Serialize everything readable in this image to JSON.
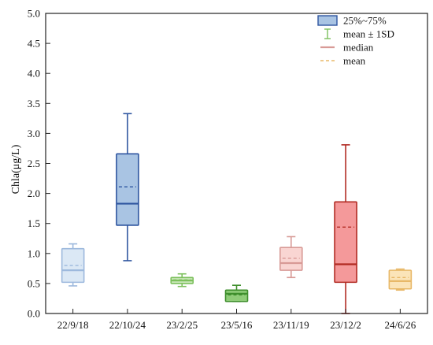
{
  "chart_data": {
    "type": "box",
    "ylabel": "Chla(μg/L)",
    "xlabel": "",
    "ylim": [
      0,
      5.0
    ],
    "yticks": [
      0.0,
      0.5,
      1.0,
      1.5,
      2.0,
      2.5,
      3.0,
      3.5,
      4.0,
      4.5,
      5.0
    ],
    "ytick_labels": [
      "0.0",
      "0.5",
      "1.0",
      "1.5",
      "2.0",
      "2.5",
      "3.0",
      "3.5",
      "4.0",
      "4.5",
      "5.0"
    ],
    "categories": [
      "22/9/18",
      "22/10/24",
      "23/2/25",
      "23/5/16",
      "23/11/19",
      "23/12/2",
      "24/6/26"
    ],
    "boxes": [
      {
        "category": "22/9/18",
        "q1": 0.52,
        "q3": 1.08,
        "median": 0.72,
        "mean": 0.8,
        "whisker_low": 0.46,
        "whisker_high": 1.16,
        "fill": "#dbe8f5",
        "stroke": "#9db9dd"
      },
      {
        "category": "22/10/24",
        "q1": 1.47,
        "q3": 2.66,
        "median": 1.83,
        "mean": 2.11,
        "whisker_low": 0.88,
        "whisker_high": 3.33,
        "fill": "#a9c4e3",
        "stroke": "#2f56a0"
      },
      {
        "category": "23/2/25",
        "q1": 0.5,
        "q3": 0.6,
        "median": 0.55,
        "mean": 0.56,
        "whisker_low": 0.45,
        "whisker_high": 0.66,
        "fill": "#cde8bd",
        "stroke": "#7cc05c"
      },
      {
        "category": "23/5/16",
        "q1": 0.2,
        "q3": 0.39,
        "median": 0.33,
        "mean": 0.31,
        "whisker_low": 0.2,
        "whisker_high": 0.47,
        "fill": "#8fcc78",
        "stroke": "#3f8f2d"
      },
      {
        "category": "23/11/19",
        "q1": 0.72,
        "q3": 1.1,
        "median": 0.84,
        "mean": 0.92,
        "whisker_low": 0.6,
        "whisker_high": 1.28,
        "fill": "#f9d5d2",
        "stroke": "#d89a96"
      },
      {
        "category": "23/12/2",
        "q1": 0.52,
        "q3": 1.86,
        "median": 0.82,
        "mean": 1.44,
        "whisker_low": 0.0,
        "whisker_high": 2.81,
        "fill": "#f4999a",
        "stroke": "#b12a22"
      },
      {
        "category": "24/6/26",
        "q1": 0.41,
        "q3": 0.72,
        "median": 0.54,
        "mean": 0.6,
        "whisker_low": 0.39,
        "whisker_high": 0.74,
        "fill": "#fbe4b8",
        "stroke": "#e8b868"
      }
    ],
    "legend": {
      "position": "top-right",
      "items": [
        {
          "label": "25%~75%",
          "kind": "box"
        },
        {
          "label": "mean ± 1SD",
          "kind": "errorbar"
        },
        {
          "label": "median",
          "kind": "solid-line"
        },
        {
          "label": "mean",
          "kind": "dashed-line"
        }
      ]
    },
    "grid": false,
    "frame": "full box"
  }
}
